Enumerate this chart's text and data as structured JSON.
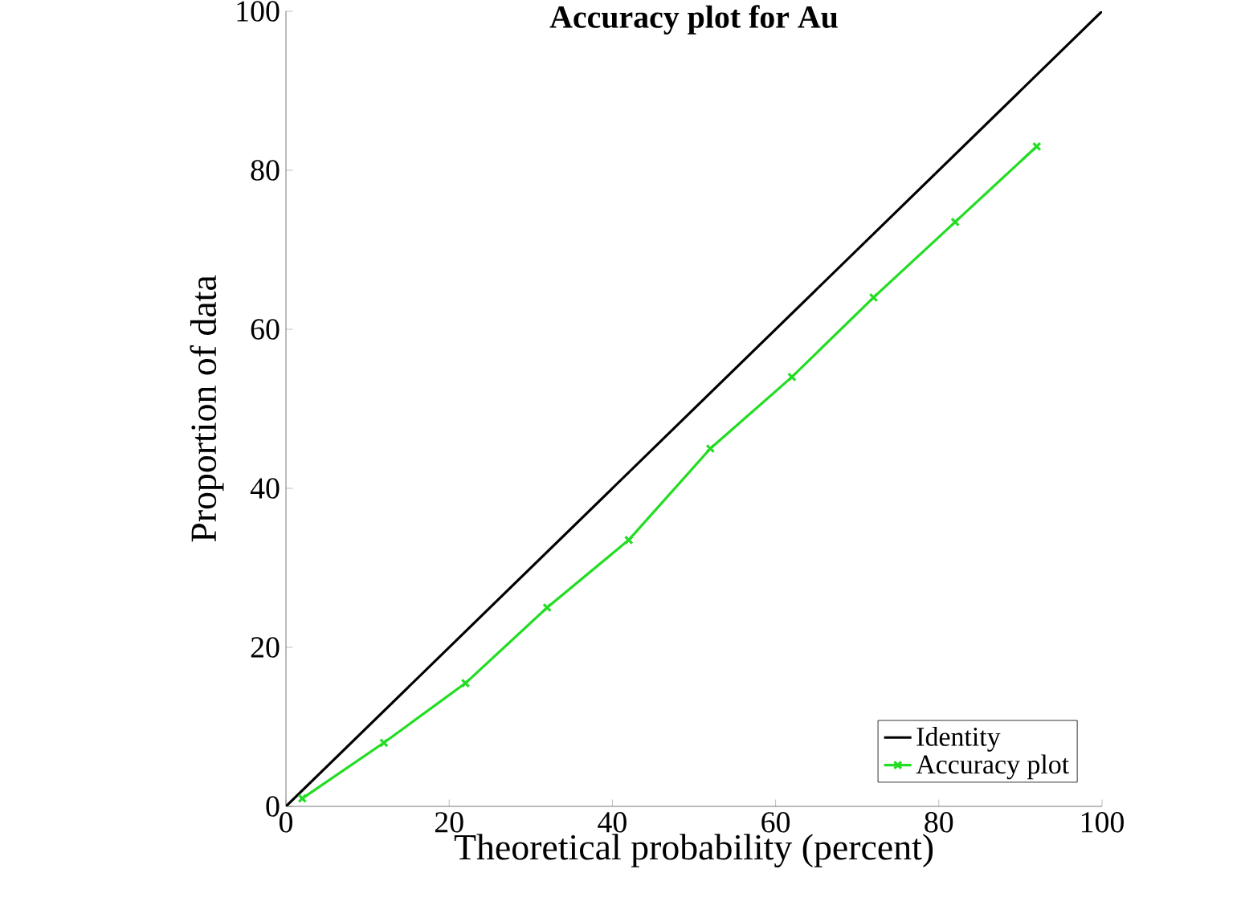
{
  "chart_data": {
    "type": "line",
    "title": "Accuracy plot for Au",
    "xlabel": "Theoretical probability (percent)",
    "ylabel": "Proportion of data",
    "xlim": [
      0,
      100
    ],
    "ylim": [
      0,
      100
    ],
    "xticks": [
      0,
      20,
      40,
      60,
      80,
      100
    ],
    "yticks": [
      0,
      20,
      40,
      60,
      80,
      100
    ],
    "legend": "bottom right",
    "grid": false,
    "series": [
      {
        "name": "Identity",
        "color": "#000000",
        "marker": "none",
        "x": [
          0,
          100
        ],
        "values": [
          0,
          100
        ]
      },
      {
        "name": "Accuracy plot",
        "color": "#22dd22",
        "marker": "cross",
        "x": [
          2,
          12,
          22,
          32,
          42,
          52,
          62,
          72,
          82,
          92
        ],
        "values": [
          1,
          8,
          15.5,
          25,
          33.5,
          45,
          54,
          64,
          73.5,
          83
        ]
      }
    ]
  }
}
